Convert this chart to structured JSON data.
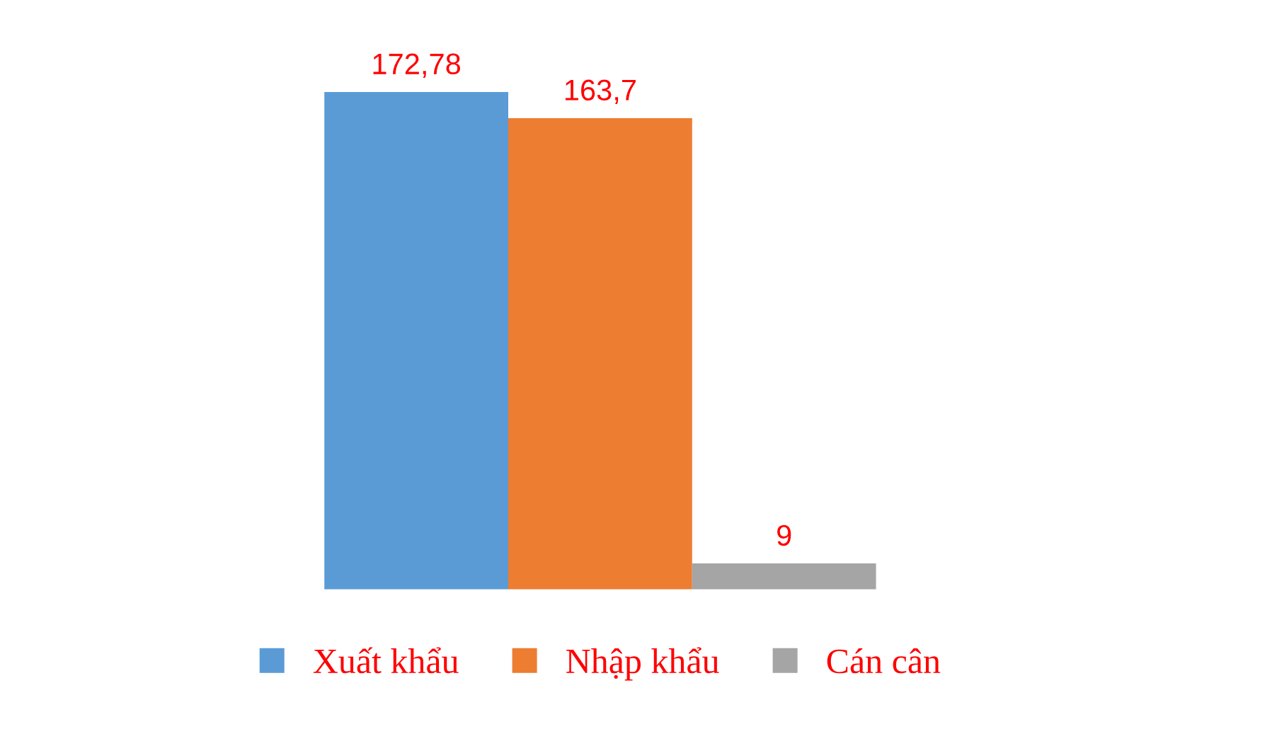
{
  "chart_data": {
    "type": "bar",
    "categories": [
      null
    ],
    "series": [
      {
        "name": "Xuất khẩu",
        "color": "#5b9bd5",
        "values": [
          172.78
        ],
        "value_labels": [
          "172,78"
        ]
      },
      {
        "name": "Nhập khẩu",
        "color": "#ed7d31",
        "values": [
          163.7
        ],
        "value_labels": [
          "163,7"
        ]
      },
      {
        "name": "Cán cân",
        "color": "#a5a5a5",
        "values": [
          9
        ],
        "value_labels": [
          "9"
        ]
      }
    ],
    "legend": "bottom",
    "grid": false
  }
}
